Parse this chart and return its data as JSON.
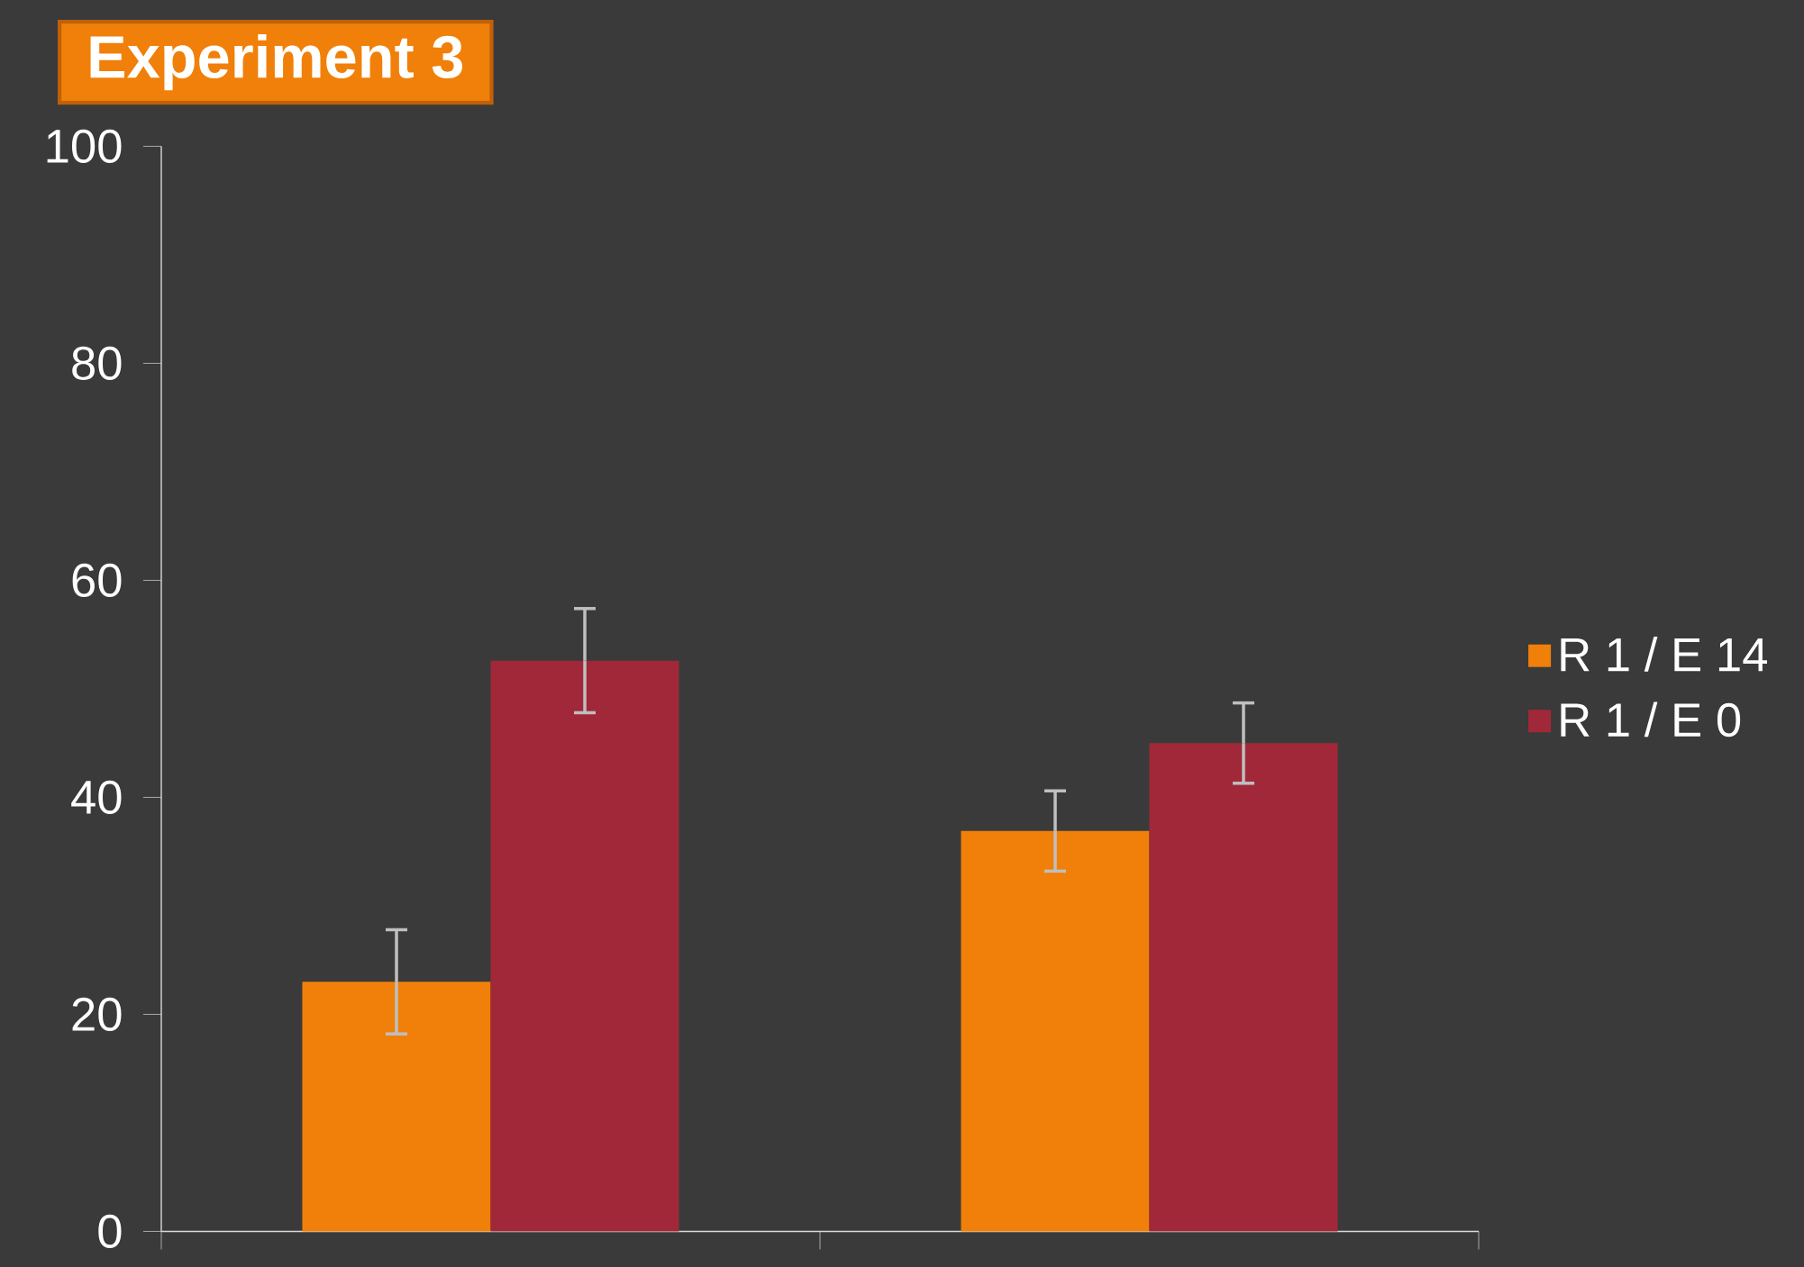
{
  "chart_data": {
    "type": "bar",
    "title": "Experiment 3",
    "categories": [
      null,
      null
    ],
    "series": [
      {
        "name": "R 1 / E 14",
        "color": "#f08009",
        "values": [
          23.0,
          36.9
        ],
        "errors": [
          4.8,
          3.7
        ]
      },
      {
        "name": "R 1 / E 0",
        "color": "#a12838",
        "values": [
          52.6,
          45.0
        ],
        "errors": [
          4.8,
          3.7
        ]
      }
    ],
    "ylim": [
      0,
      100
    ],
    "yticks": [
      0,
      20,
      40,
      60,
      80,
      100
    ],
    "legend": "right"
  }
}
